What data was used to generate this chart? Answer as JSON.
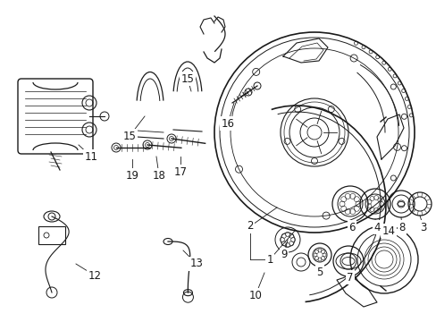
{
  "background_color": "#ffffff",
  "line_color": "#1a1a1a",
  "figsize": [
    4.89,
    3.6
  ],
  "dpi": 100,
  "font_size": 8.5
}
